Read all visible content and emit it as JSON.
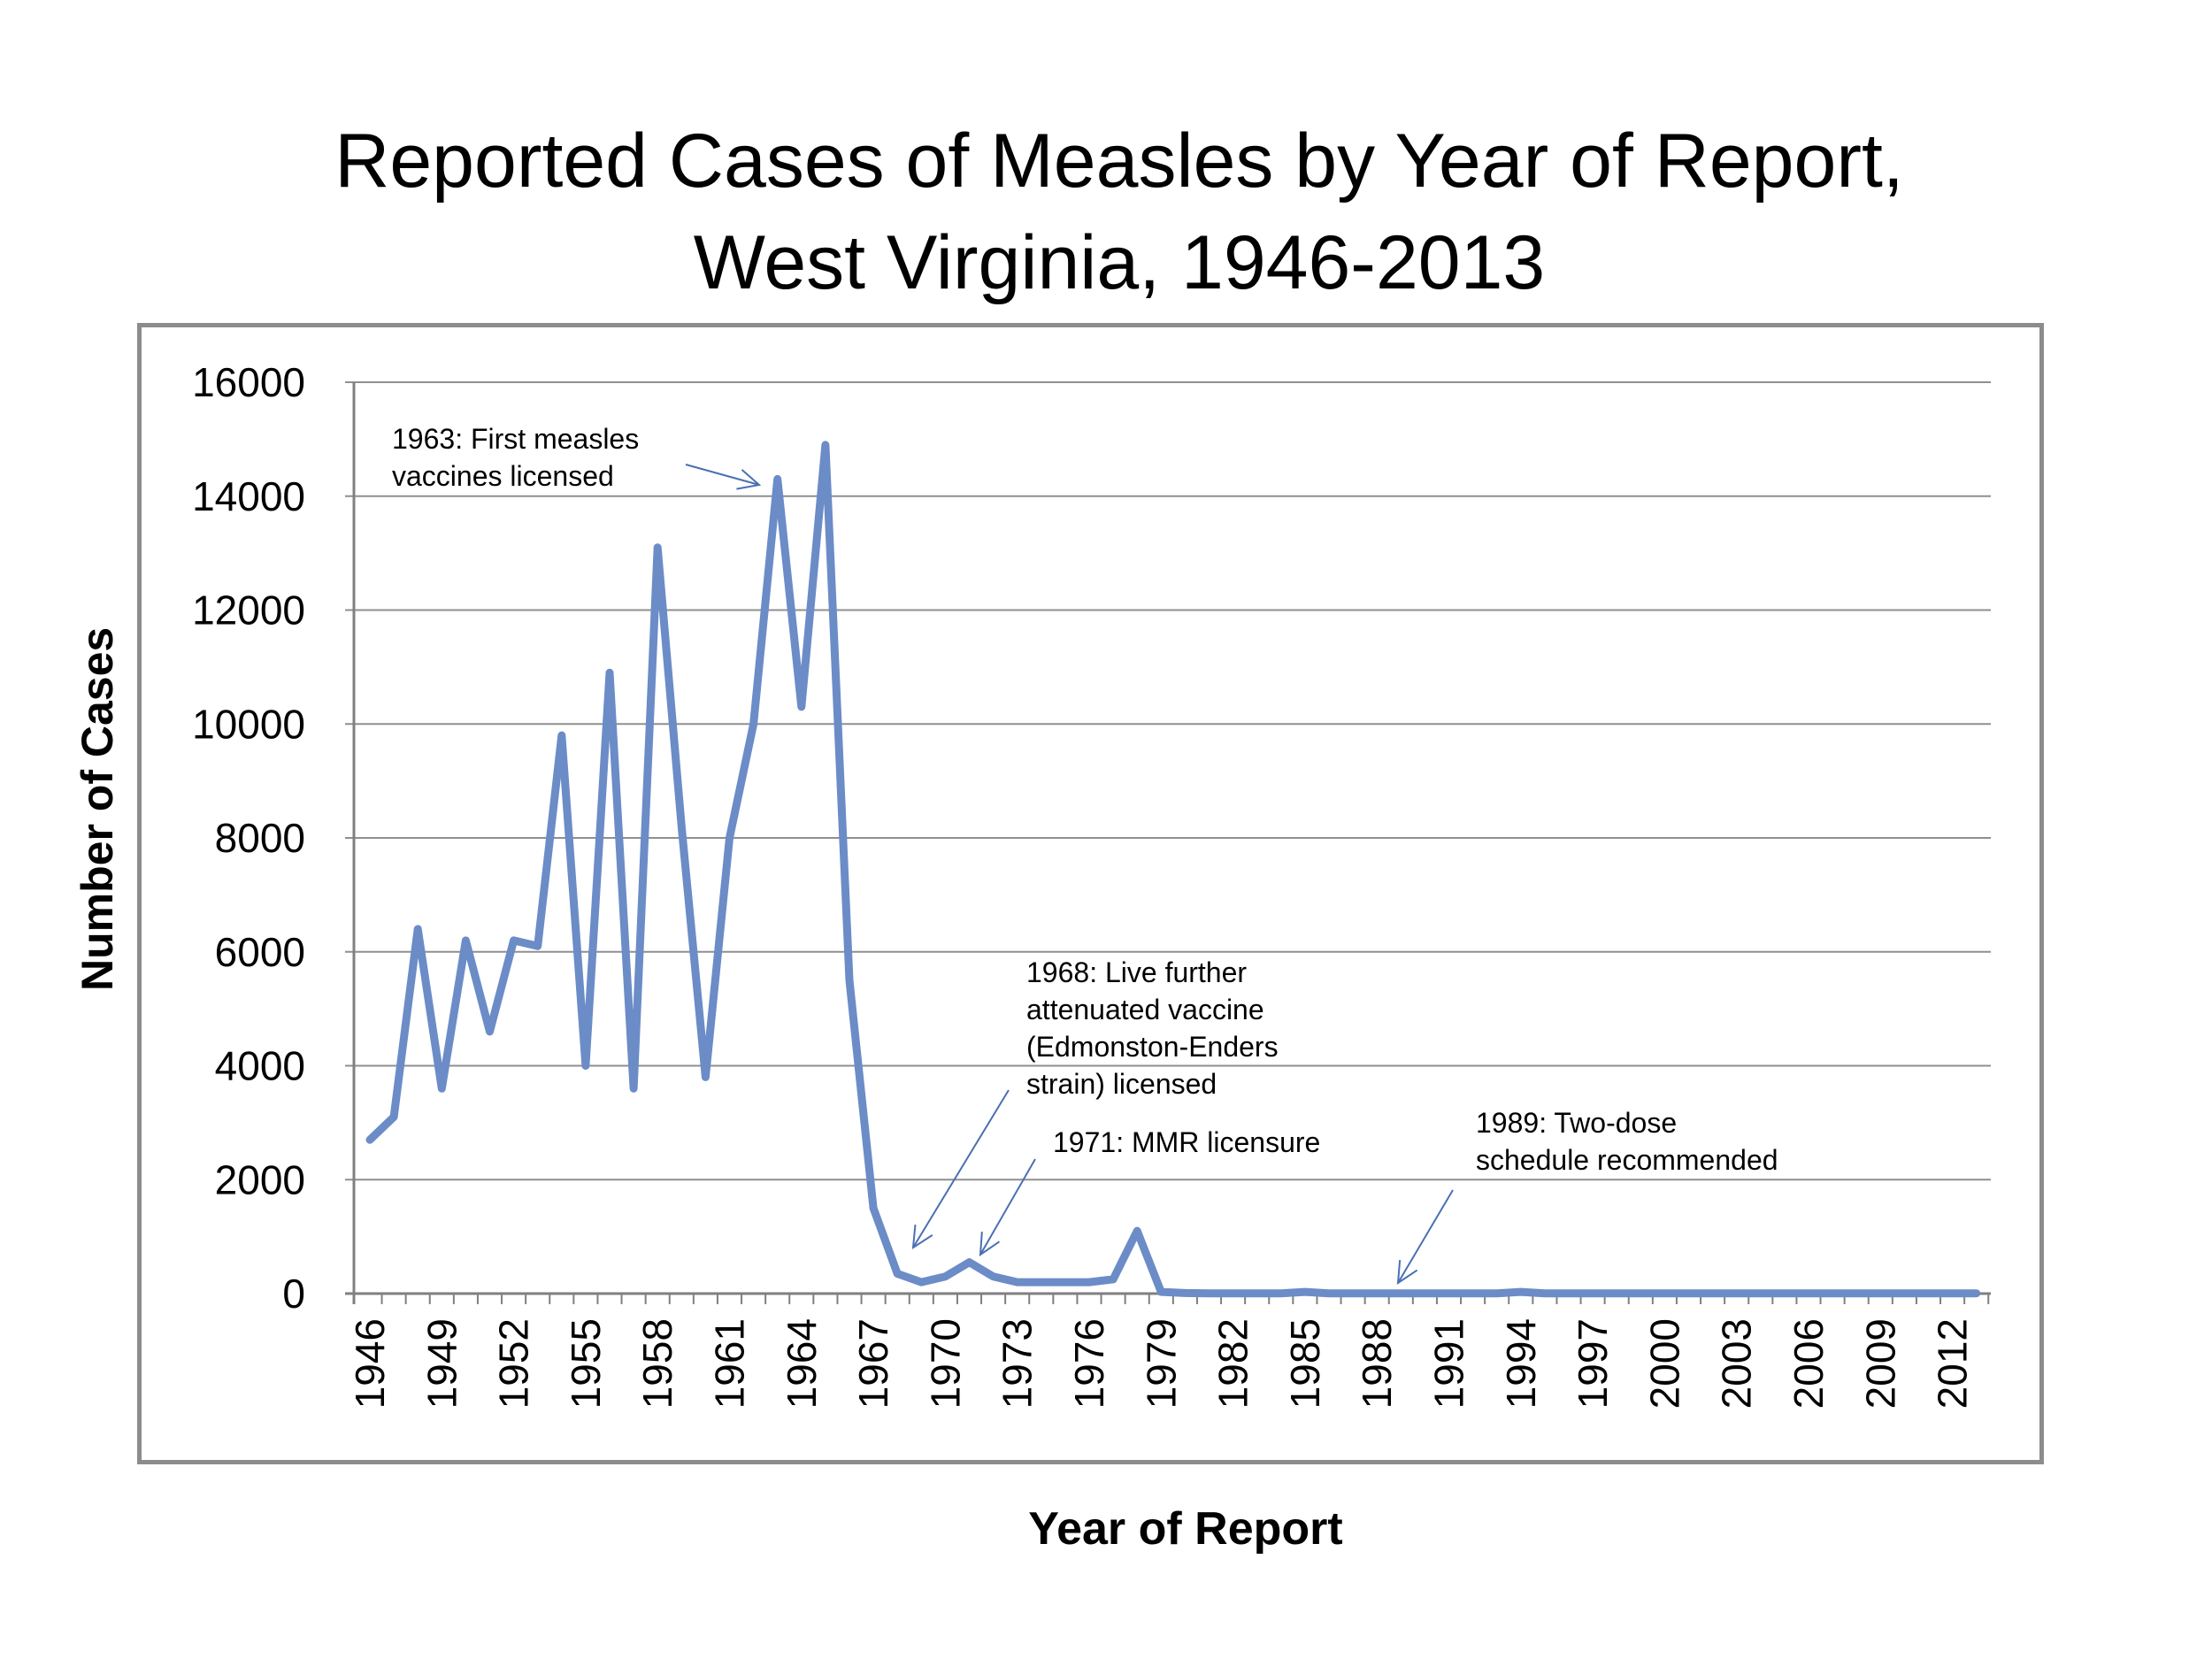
{
  "chart_data": {
    "type": "line",
    "title": [
      "Reported Cases of Measles by Year of Report,",
      "West Virginia, 1946-2013"
    ],
    "xlabel": "Year of Report",
    "ylabel": "Number of Cases",
    "ylim": [
      0,
      16000
    ],
    "yticks": [
      "0",
      "2000",
      "4000",
      "6000",
      "8000",
      "10000",
      "12000",
      "14000",
      "16000"
    ],
    "xtick_labels": [
      "1946",
      "1949",
      "1952",
      "1955",
      "1958",
      "1961",
      "1964",
      "1967",
      "1970",
      "1973",
      "1976",
      "1979",
      "1982",
      "1985",
      "1988",
      "1991",
      "1994",
      "1997",
      "2000",
      "2003",
      "2006",
      "2009",
      "2012"
    ],
    "grid": true,
    "line_color": "#6b8cc7",
    "series": [
      {
        "name": "Reported cases",
        "x": [
          1946,
          1947,
          1948,
          1949,
          1950,
          1951,
          1952,
          1953,
          1954,
          1955,
          1956,
          1957,
          1958,
          1959,
          1960,
          1961,
          1962,
          1963,
          1964,
          1965,
          1966,
          1967,
          1968,
          1969,
          1970,
          1971,
          1972,
          1973,
          1974,
          1975,
          1976,
          1977,
          1978,
          1979,
          1980,
          1981,
          1982,
          1983,
          1984,
          1985,
          1986,
          1987,
          1988,
          1989,
          1990,
          1991,
          1992,
          1993,
          1994,
          1995,
          1996,
          1997,
          1998,
          1999,
          2000,
          2001,
          2002,
          2003,
          2004,
          2005,
          2006,
          2007,
          2008,
          2009,
          2010,
          2011,
          2012,
          2013
        ],
        "values": [
          2700,
          3100,
          6400,
          3600,
          6200,
          4600,
          6200,
          6100,
          9800,
          4000,
          10900,
          3600,
          13100,
          8200,
          3800,
          8000,
          10000,
          14300,
          10300,
          14900,
          5500,
          1500,
          350,
          200,
          300,
          550,
          300,
          200,
          200,
          200,
          200,
          250,
          1100,
          30,
          10,
          5,
          5,
          5,
          5,
          30,
          5,
          5,
          5,
          5,
          5,
          5,
          5,
          5,
          30,
          5,
          5,
          5,
          5,
          5,
          5,
          5,
          5,
          5,
          5,
          5,
          5,
          5,
          5,
          5,
          5,
          5,
          5,
          5
        ]
      }
    ],
    "annotations": [
      {
        "lines": [
          "1963:  First measles",
          "vaccines licensed"
        ],
        "year": 1963
      },
      {
        "lines": [
          "1968:  Live further",
          "attenuated vaccine",
          "(Edmonston-Enders",
          "strain) licensed"
        ],
        "year": 1968
      },
      {
        "lines": [
          "1971:  MMR licensure"
        ],
        "year": 1971
      },
      {
        "lines": [
          "1989:  Two-dose",
          "schedule recommended"
        ],
        "year": 1989
      }
    ]
  }
}
